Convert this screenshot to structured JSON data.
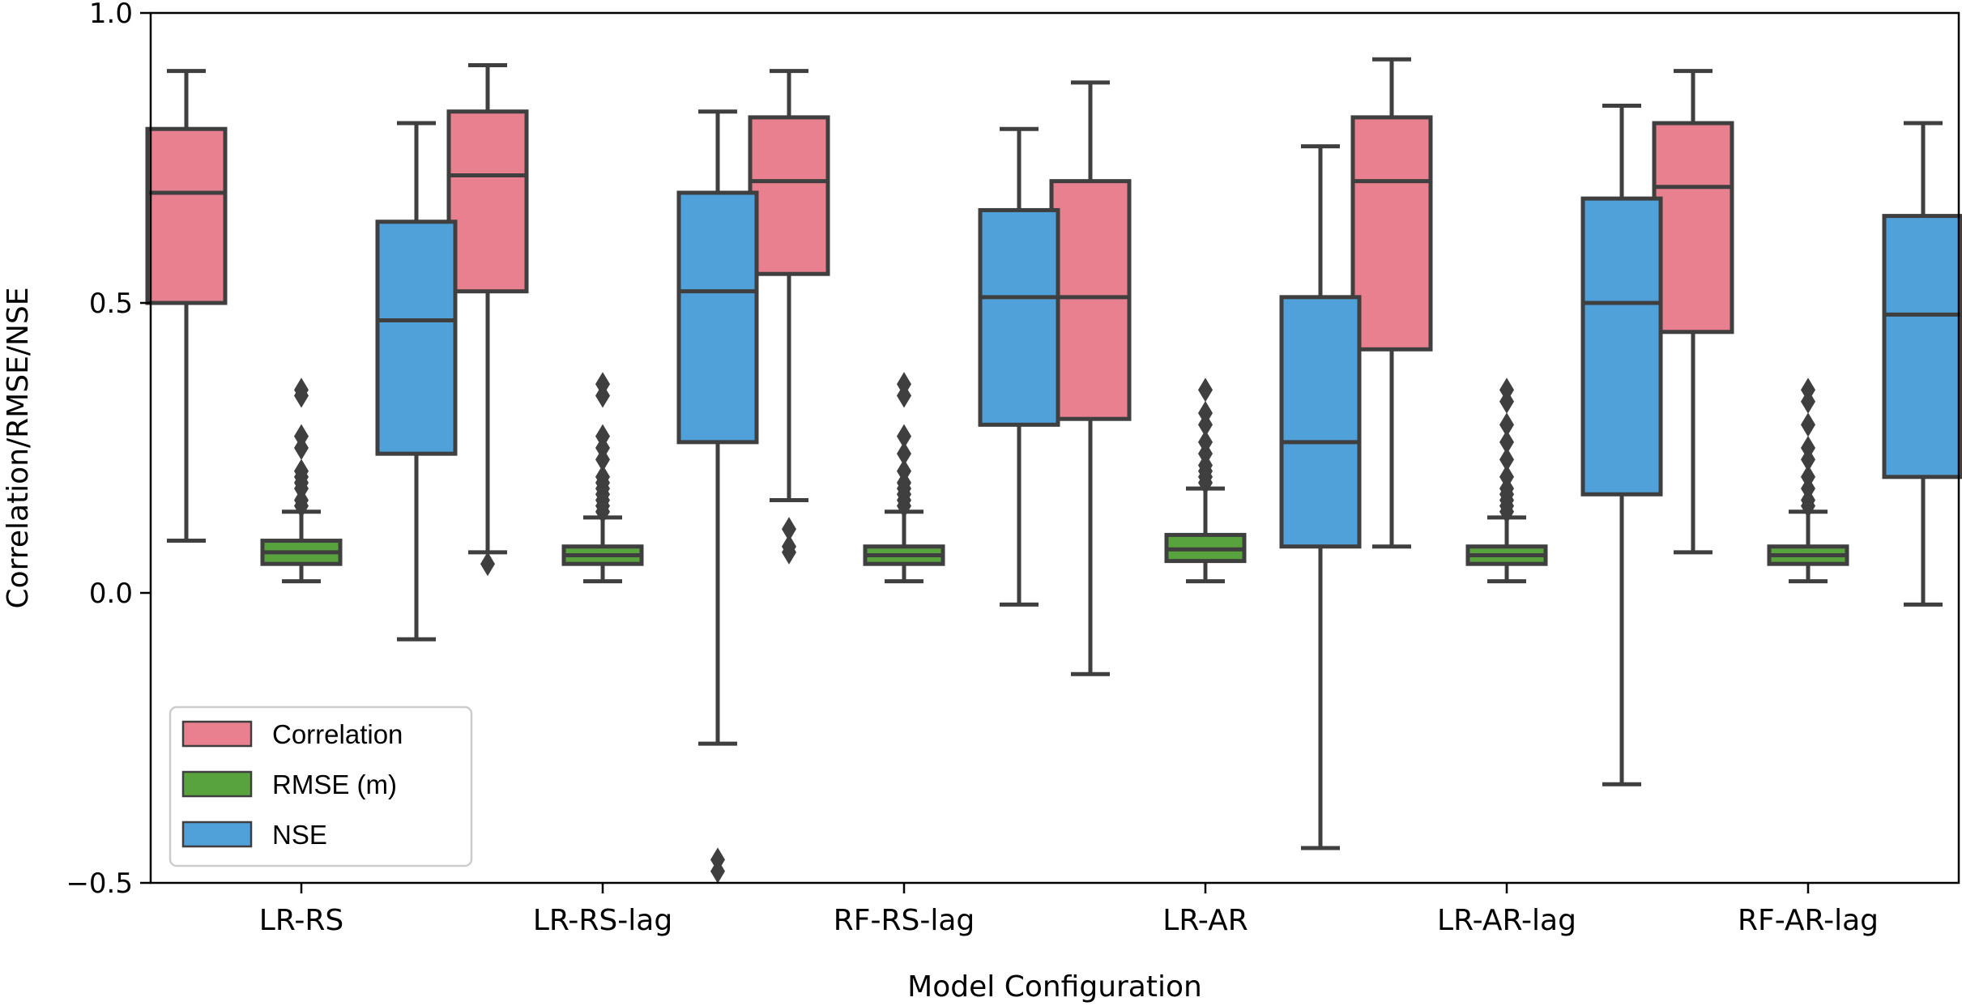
{
  "chart_data": {
    "type": "box",
    "xlabel": "Model Configuration",
    "ylabel": "Correlation/RMSE/NSE",
    "ylim": [
      -0.5,
      1.0
    ],
    "yticks": [
      -0.5,
      0.0,
      0.5,
      1.0
    ],
    "ytick_labels": [
      "−0.5",
      "0.0",
      "0.5",
      "1.0"
    ],
    "grid": false,
    "legend_position": "lower-left",
    "categories": [
      "LR-RS",
      "LR-RS-lag",
      "RF-RS-lag",
      "LR-AR",
      "LR-AR-lag",
      "RF-AR-lag"
    ],
    "series": [
      {
        "name": "Correlation",
        "color": "#e8808f",
        "boxes": [
          {
            "whislo": 0.09,
            "q1": 0.5,
            "median": 0.69,
            "q3": 0.8,
            "whishi": 0.9,
            "fliers": []
          },
          {
            "whislo": 0.07,
            "q1": 0.52,
            "median": 0.72,
            "q3": 0.83,
            "whishi": 0.91,
            "fliers": [
              0.05
            ]
          },
          {
            "whislo": 0.16,
            "q1": 0.55,
            "median": 0.71,
            "q3": 0.82,
            "whishi": 0.9,
            "fliers": [
              0.07,
              0.08,
              0.11
            ]
          },
          {
            "whislo": -0.14,
            "q1": 0.3,
            "median": 0.51,
            "q3": 0.71,
            "whishi": 0.88,
            "fliers": []
          },
          {
            "whislo": 0.08,
            "q1": 0.42,
            "median": 0.71,
            "q3": 0.82,
            "whishi": 0.92,
            "fliers": []
          },
          {
            "whislo": 0.07,
            "q1": 0.45,
            "median": 0.7,
            "q3": 0.81,
            "whishi": 0.9,
            "fliers": []
          }
        ]
      },
      {
        "name": "RMSE (m)",
        "color": "#59a33e",
        "boxes": [
          {
            "whislo": 0.02,
            "q1": 0.05,
            "median": 0.07,
            "q3": 0.09,
            "whishi": 0.14,
            "fliers": [
              0.15,
              0.16,
              0.18,
              0.19,
              0.2,
              0.21,
              0.25,
              0.27,
              0.34,
              0.35
            ]
          },
          {
            "whislo": 0.02,
            "q1": 0.05,
            "median": 0.065,
            "q3": 0.08,
            "whishi": 0.13,
            "fliers": [
              0.14,
              0.15,
              0.16,
              0.17,
              0.18,
              0.19,
              0.2,
              0.23,
              0.25,
              0.27,
              0.34,
              0.36
            ]
          },
          {
            "whislo": 0.02,
            "q1": 0.05,
            "median": 0.065,
            "q3": 0.08,
            "whishi": 0.14,
            "fliers": [
              0.15,
              0.16,
              0.17,
              0.18,
              0.19,
              0.21,
              0.24,
              0.27,
              0.34,
              0.36
            ]
          },
          {
            "whislo": 0.02,
            "q1": 0.055,
            "median": 0.075,
            "q3": 0.1,
            "whishi": 0.18,
            "fliers": [
              0.19,
              0.2,
              0.21,
              0.22,
              0.24,
              0.26,
              0.29,
              0.31,
              0.35
            ]
          },
          {
            "whislo": 0.02,
            "q1": 0.05,
            "median": 0.065,
            "q3": 0.08,
            "whishi": 0.13,
            "fliers": [
              0.14,
              0.15,
              0.16,
              0.17,
              0.18,
              0.2,
              0.23,
              0.26,
              0.29,
              0.33,
              0.35
            ]
          },
          {
            "whislo": 0.02,
            "q1": 0.05,
            "median": 0.065,
            "q3": 0.08,
            "whishi": 0.14,
            "fliers": [
              0.15,
              0.16,
              0.18,
              0.2,
              0.23,
              0.25,
              0.29,
              0.33,
              0.35
            ]
          }
        ]
      },
      {
        "name": "NSE",
        "color": "#50a0da",
        "boxes": [
          {
            "whislo": -0.08,
            "q1": 0.24,
            "median": 0.47,
            "q3": 0.64,
            "whishi": 0.81,
            "fliers": []
          },
          {
            "whislo": -0.26,
            "q1": 0.26,
            "median": 0.52,
            "q3": 0.69,
            "whishi": 0.83,
            "fliers": [
              -0.46,
              -0.48
            ]
          },
          {
            "whislo": -0.02,
            "q1": 0.29,
            "median": 0.51,
            "q3": 0.66,
            "whishi": 0.8,
            "fliers": []
          },
          {
            "whislo": -0.44,
            "q1": 0.08,
            "median": 0.26,
            "q3": 0.51,
            "whishi": 0.77,
            "fliers": []
          },
          {
            "whislo": -0.33,
            "q1": 0.17,
            "median": 0.5,
            "q3": 0.68,
            "whishi": 0.84,
            "fliers": []
          },
          {
            "whislo": -0.02,
            "q1": 0.2,
            "median": 0.48,
            "q3": 0.65,
            "whishi": 0.81,
            "fliers": []
          }
        ]
      }
    ]
  }
}
